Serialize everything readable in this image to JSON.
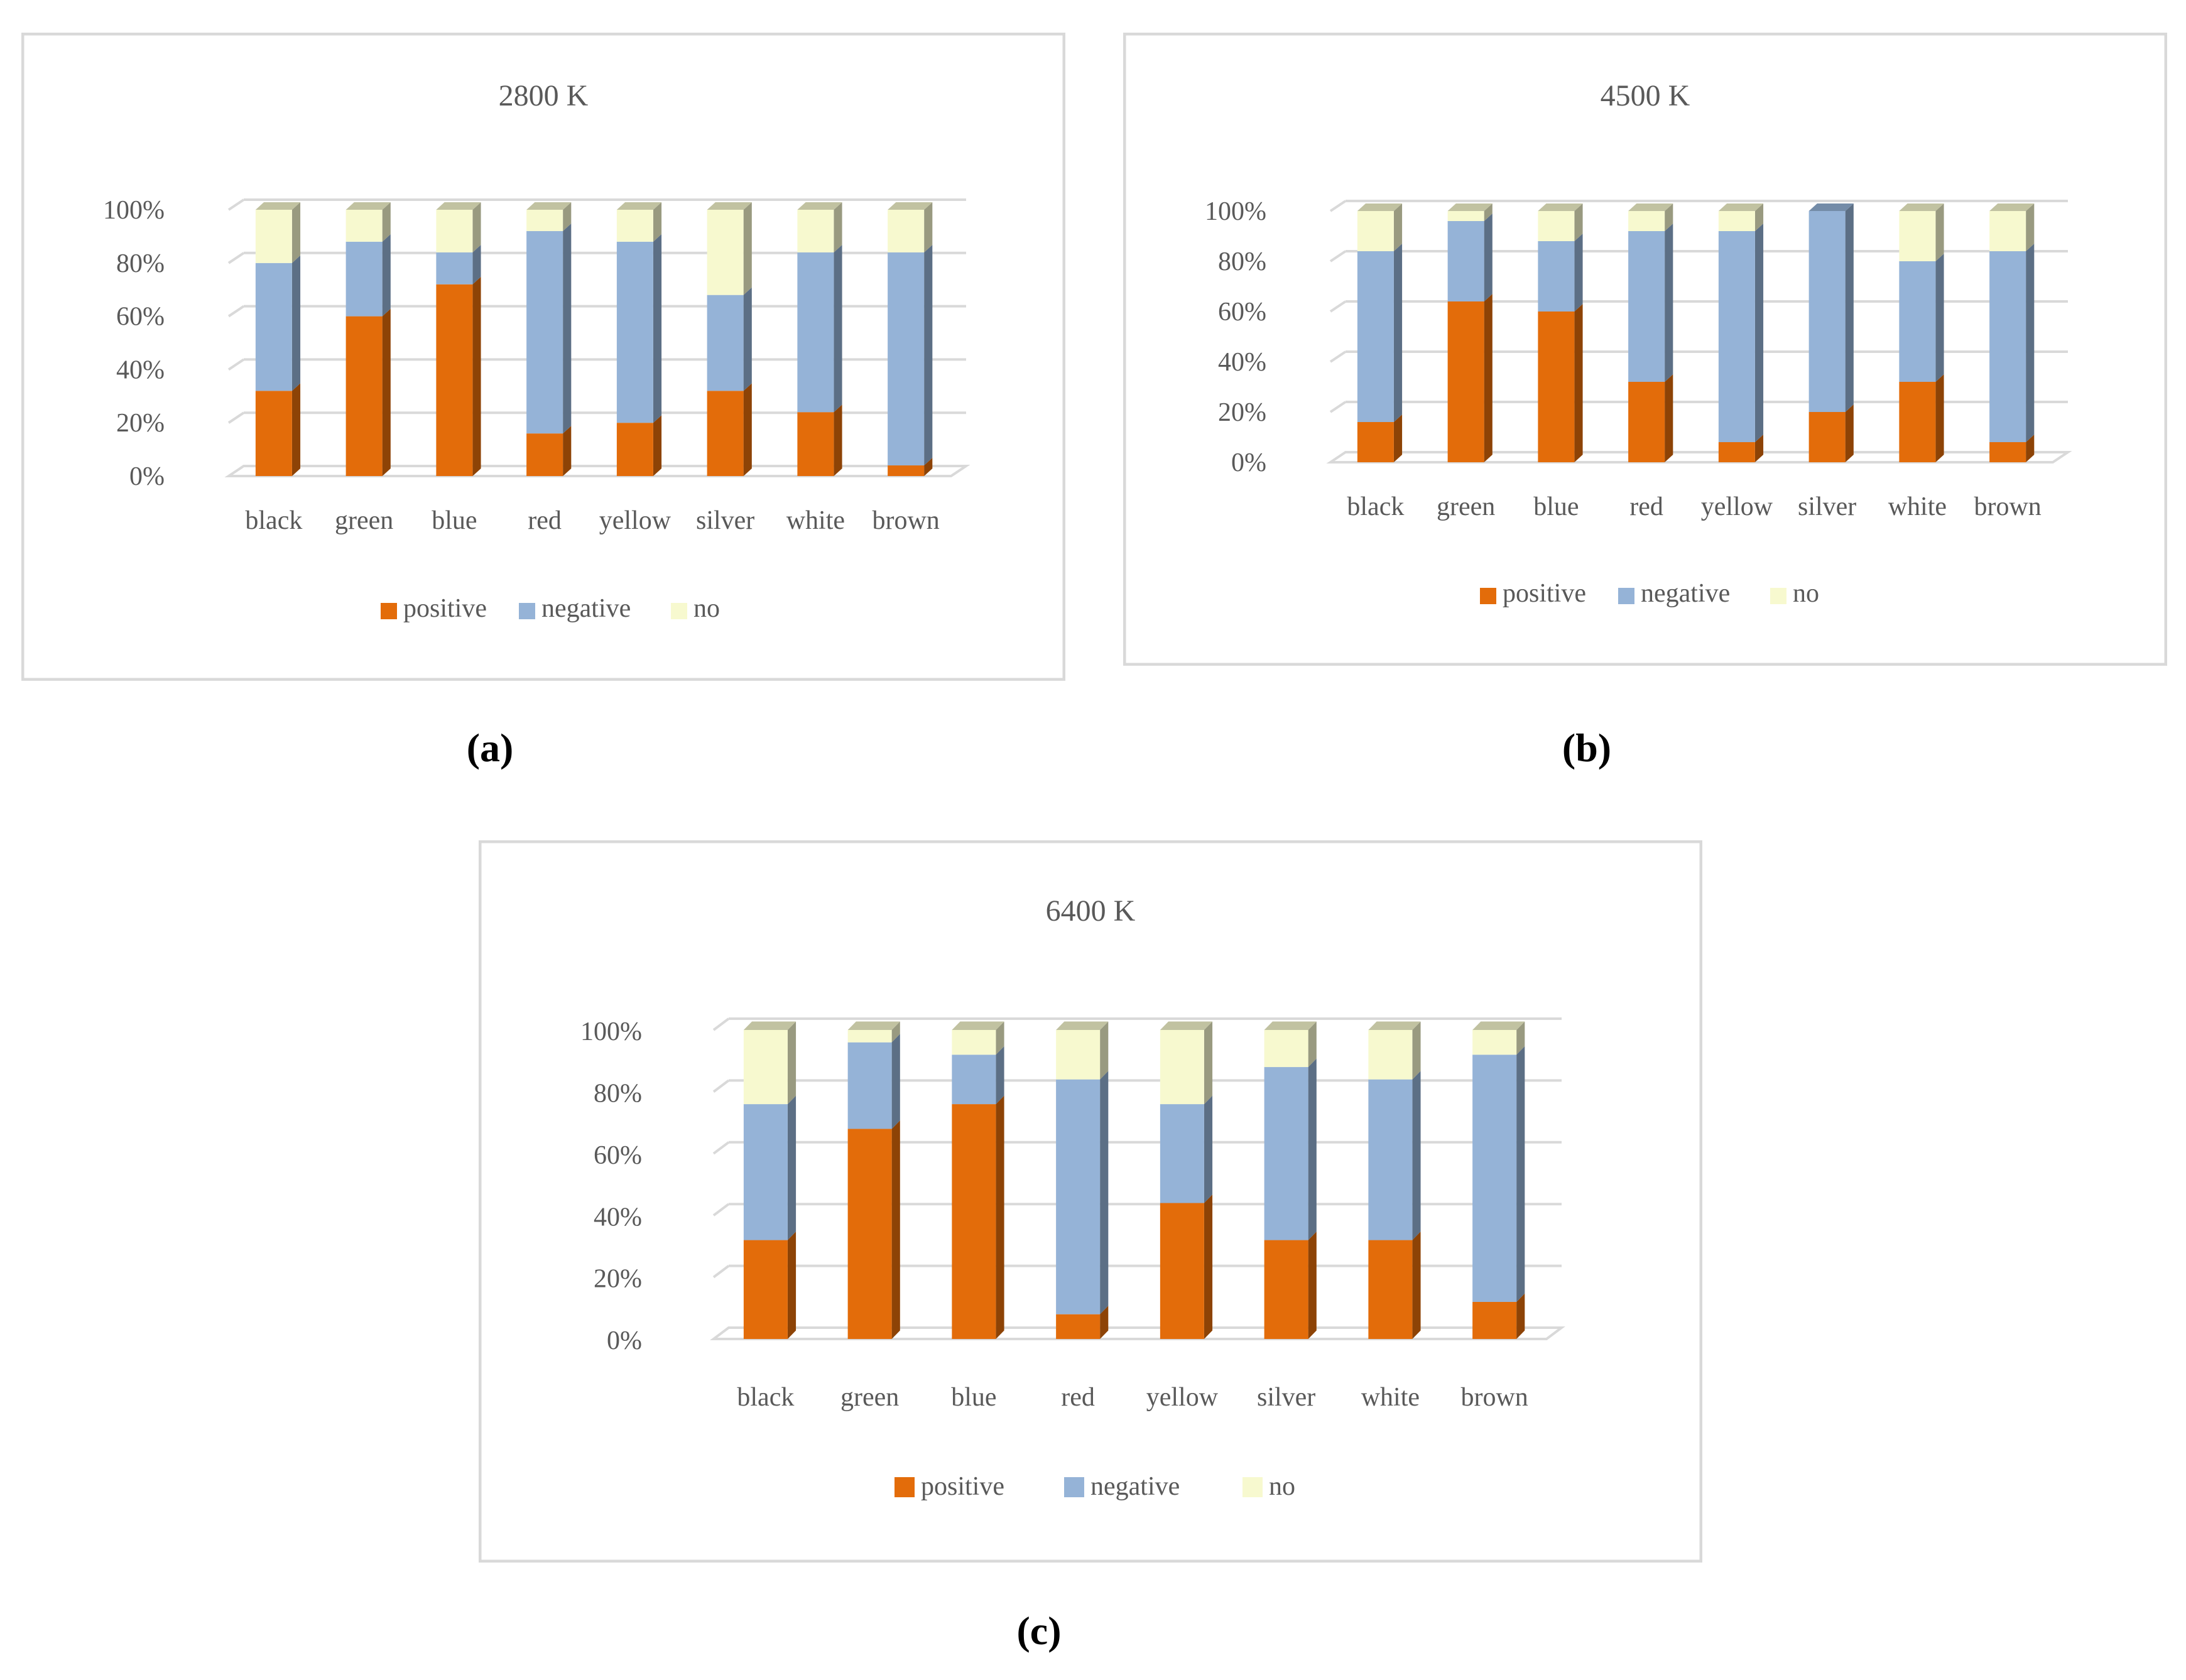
{
  "colors": {
    "positive": "#E36C0A",
    "negative": "#95B3D7",
    "no": "#F7F9CF",
    "grid": "#D9D9D9",
    "frame": "#D9D9D9",
    "text": "#595959"
  },
  "captions": [
    "(a)",
    "(b)",
    "(c)"
  ],
  "chart_data": [
    {
      "type": "bar",
      "stacked": true,
      "title": "2800 K",
      "categories": [
        "black",
        "green",
        "blue",
        "red",
        "yellow",
        "silver",
        "white",
        "brown"
      ],
      "yticks": [
        "0%",
        "20%",
        "40%",
        "60%",
        "80%",
        "100%"
      ],
      "ylim": [
        0,
        100
      ],
      "series": [
        {
          "name": "positive",
          "values": [
            32,
            60,
            72,
            16,
            20,
            32,
            24,
            4
          ]
        },
        {
          "name": "negative",
          "values": [
            48,
            28,
            12,
            76,
            68,
            36,
            60,
            80
          ]
        },
        {
          "name": "no",
          "values": [
            20,
            12,
            16,
            8,
            12,
            32,
            16,
            16
          ]
        }
      ],
      "legend": "bottom"
    },
    {
      "type": "bar",
      "stacked": true,
      "title": "4500 K",
      "categories": [
        "black",
        "green",
        "blue",
        "red",
        "yellow",
        "silver",
        "white",
        "brown"
      ],
      "yticks": [
        "0%",
        "20%",
        "40%",
        "60%",
        "80%",
        "100%"
      ],
      "ylim": [
        0,
        100
      ],
      "series": [
        {
          "name": "positive",
          "values": [
            16,
            64,
            60,
            32,
            8,
            20,
            32,
            8
          ]
        },
        {
          "name": "negative",
          "values": [
            68,
            32,
            28,
            60,
            84,
            80,
            48,
            76
          ]
        },
        {
          "name": "no",
          "values": [
            16,
            4,
            12,
            8,
            8,
            0,
            20,
            16
          ]
        }
      ],
      "legend": "bottom"
    },
    {
      "type": "bar",
      "stacked": true,
      "title": "6400 K",
      "categories": [
        "black",
        "green",
        "blue",
        "red",
        "yellow",
        "silver",
        "white",
        "brown"
      ],
      "yticks": [
        "0%",
        "20%",
        "40%",
        "60%",
        "80%",
        "100%"
      ],
      "ylim": [
        0,
        100
      ],
      "series": [
        {
          "name": "positive",
          "values": [
            32,
            68,
            76,
            8,
            44,
            32,
            32,
            12
          ]
        },
        {
          "name": "negative",
          "values": [
            44,
            28,
            16,
            76,
            32,
            56,
            52,
            80
          ]
        },
        {
          "name": "no",
          "values": [
            24,
            4,
            8,
            16,
            24,
            12,
            16,
            8
          ]
        }
      ],
      "legend": "bottom"
    }
  ]
}
